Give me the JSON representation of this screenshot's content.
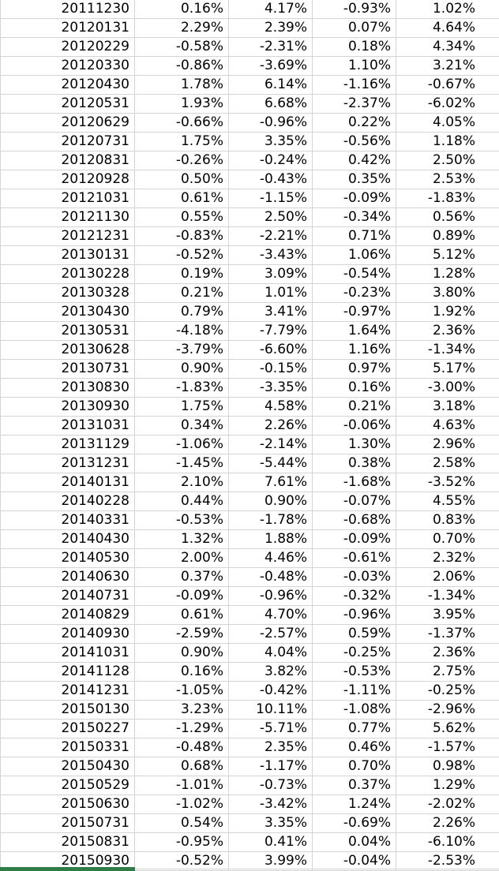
{
  "sheet": {
    "rows": [
      [
        "20111230",
        "0.16%",
        "4.17%",
        "-0.93%",
        "1.02%"
      ],
      [
        "20120131",
        "2.29%",
        "2.39%",
        "0.07%",
        "4.64%"
      ],
      [
        "20120229",
        "-0.58%",
        "-2.31%",
        "0.18%",
        "4.34%"
      ],
      [
        "20120330",
        "-0.86%",
        "-3.69%",
        "1.10%",
        "3.21%"
      ],
      [
        "20120430",
        "1.78%",
        "6.14%",
        "-1.16%",
        "-0.67%"
      ],
      [
        "20120531",
        "1.93%",
        "6.68%",
        "-2.37%",
        "-6.02%"
      ],
      [
        "20120629",
        "-0.66%",
        "-0.96%",
        "0.22%",
        "4.05%"
      ],
      [
        "20120731",
        "1.75%",
        "3.35%",
        "-0.56%",
        "1.18%"
      ],
      [
        "20120831",
        "-0.26%",
        "-0.24%",
        "0.42%",
        "2.50%"
      ],
      [
        "20120928",
        "0.50%",
        "-0.43%",
        "0.35%",
        "2.53%"
      ],
      [
        "20121031",
        "0.61%",
        "-1.15%",
        "-0.09%",
        "-1.83%"
      ],
      [
        "20121130",
        "0.55%",
        "2.50%",
        "-0.34%",
        "0.56%"
      ],
      [
        "20121231",
        "-0.83%",
        "-2.21%",
        "0.71%",
        "0.89%"
      ],
      [
        "20130131",
        "-0.52%",
        "-3.43%",
        "1.06%",
        "5.12%"
      ],
      [
        "20130228",
        "0.19%",
        "3.09%",
        "-0.54%",
        "1.28%"
      ],
      [
        "20130328",
        "0.21%",
        "1.01%",
        "-0.23%",
        "3.80%"
      ],
      [
        "20130430",
        "0.79%",
        "3.41%",
        "-0.97%",
        "1.92%"
      ],
      [
        "20130531",
        "-4.18%",
        "-7.79%",
        "1.64%",
        "2.36%"
      ],
      [
        "20130628",
        "-3.79%",
        "-6.60%",
        "1.16%",
        "-1.34%"
      ],
      [
        "20130731",
        "0.90%",
        "-0.15%",
        "0.97%",
        "5.17%"
      ],
      [
        "20130830",
        "-1.83%",
        "-3.35%",
        "0.16%",
        "-3.00%"
      ],
      [
        "20130930",
        "1.75%",
        "4.58%",
        "0.21%",
        "3.18%"
      ],
      [
        "20131031",
        "0.34%",
        "2.26%",
        "-0.06%",
        "4.63%"
      ],
      [
        "20131129",
        "-1.06%",
        "-2.14%",
        "1.30%",
        "2.96%"
      ],
      [
        "20131231",
        "-1.45%",
        "-5.44%",
        "0.38%",
        "2.58%"
      ],
      [
        "20140131",
        "2.10%",
        "7.61%",
        "-1.68%",
        "-3.52%"
      ],
      [
        "20140228",
        "0.44%",
        "0.90%",
        "-0.07%",
        "4.55%"
      ],
      [
        "20140331",
        "-0.53%",
        "-1.78%",
        "-0.68%",
        "0.83%"
      ],
      [
        "20140430",
        "1.32%",
        "1.88%",
        "-0.09%",
        "0.70%"
      ],
      [
        "20140530",
        "2.00%",
        "4.46%",
        "-0.61%",
        "2.32%"
      ],
      [
        "20140630",
        "0.37%",
        "-0.48%",
        "-0.03%",
        "2.06%"
      ],
      [
        "20140731",
        "-0.09%",
        "-0.96%",
        "-0.32%",
        "-1.34%"
      ],
      [
        "20140829",
        "0.61%",
        "4.70%",
        "-0.96%",
        "3.95%"
      ],
      [
        "20140930",
        "-2.59%",
        "-2.57%",
        "0.59%",
        "-1.37%"
      ],
      [
        "20141031",
        "0.90%",
        "4.04%",
        "-0.25%",
        "2.36%"
      ],
      [
        "20141128",
        "0.16%",
        "3.82%",
        "-0.53%",
        "2.75%"
      ],
      [
        "20141231",
        "-1.05%",
        "-0.42%",
        "-1.11%",
        "-0.25%"
      ],
      [
        "20150130",
        "3.23%",
        "10.11%",
        "-1.08%",
        "-2.96%"
      ],
      [
        "20150227",
        "-1.29%",
        "-5.71%",
        "0.77%",
        "5.62%"
      ],
      [
        "20150331",
        "-0.48%",
        "2.35%",
        "0.46%",
        "-1.57%"
      ],
      [
        "20150430",
        "0.68%",
        "-1.17%",
        "0.70%",
        "0.98%"
      ],
      [
        "20150529",
        "-1.01%",
        "-0.73%",
        "0.37%",
        "1.29%"
      ],
      [
        "20150630",
        "-1.02%",
        "-3.42%",
        "1.24%",
        "-2.02%"
      ],
      [
        "20150731",
        "0.54%",
        "3.35%",
        "-0.69%",
        "2.26%"
      ],
      [
        "20150831",
        "-0.95%",
        "0.41%",
        "0.04%",
        "-6.10%"
      ],
      [
        "20150930",
        "-0.52%",
        "3.99%",
        "-0.04%",
        "-2.53%"
      ]
    ],
    "selected_row": 45,
    "selected_col": 0,
    "colors": {
      "gridline": "#d4d4d4",
      "text": "#000000",
      "selection_indicator": "#2e7d46"
    }
  }
}
